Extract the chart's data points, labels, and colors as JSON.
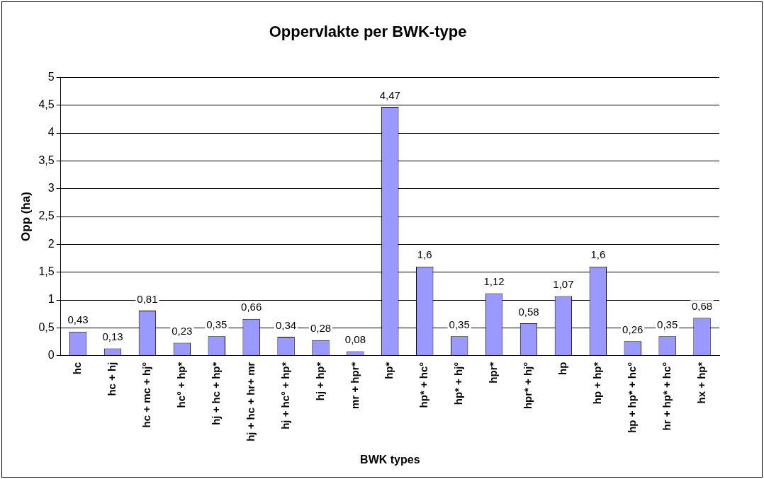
{
  "chart_data": {
    "type": "bar",
    "title": "Oppervlakte per BWK-type",
    "xlabel": "BWK types",
    "ylabel": "Opp (ha)",
    "categories": [
      "hc",
      "hc + hj",
      "hc + mc + hj°",
      "hc° + hp*",
      "hj + hc + hp*",
      "hj + hc + hr+ mr",
      "hj + hc° + hp*",
      "hj + hp*",
      "mr + hpr*",
      "hp*",
      "hp* + hc°",
      "hp* + hj°",
      "hpr*",
      "hpr* + hj°",
      "hp",
      "hp + hp*",
      "hp + hp* + hc°",
      "hr + hp* + hc°",
      "hx + hp*"
    ],
    "values": [
      0.43,
      0.13,
      0.81,
      0.23,
      0.35,
      0.66,
      0.34,
      0.28,
      0.08,
      4.47,
      1.6,
      0.35,
      1.12,
      0.58,
      1.07,
      1.6,
      0.26,
      0.35,
      0.68
    ],
    "value_labels": [
      "0,43",
      "0,13",
      "0,81",
      "0,23",
      "0,35",
      "0,66",
      "0,34",
      "0,28",
      "0,08",
      "4,47",
      "1,6",
      "0,35",
      "1,12",
      "0,58",
      "1,07",
      "1,6",
      "0,26",
      "0,35",
      "0,68"
    ],
    "color": "#9999ff",
    "ylim": [
      0,
      5
    ],
    "yticks": [
      0,
      {
        "value": 0.5,
        "label": "0,5"
      },
      1,
      {
        "value": 1.5,
        "label": "1,5"
      },
      2,
      {
        "value": 2.5,
        "label": "2,5"
      },
      3,
      {
        "value": 3.5,
        "label": "3,5"
      },
      4,
      {
        "value": 4.5,
        "label": "4,5"
      },
      5
    ],
    "grid": "y",
    "legend": false
  }
}
